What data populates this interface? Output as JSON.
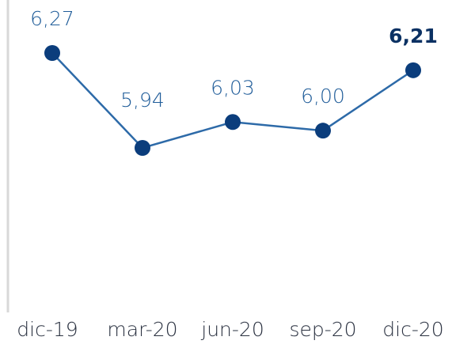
{
  "chart_data": {
    "type": "line",
    "categories": [
      "dic-19",
      "mar-20",
      "jun-20",
      "sep-20",
      "dic-20"
    ],
    "series": [
      {
        "color": "#0b3d7c",
        "values": [
          6.27,
          5.94,
          6.03,
          6.0,
          6.21
        ],
        "value_labels": [
          "6,27",
          "5,94",
          "6,03",
          "6,00",
          "6,21"
        ]
      }
    ]
  }
}
